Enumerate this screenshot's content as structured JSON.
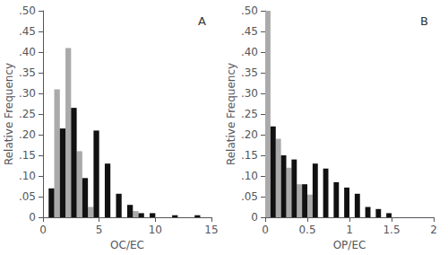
{
  "chart_data": [
    {
      "type": "histogram",
      "annotations": [
        "A"
      ],
      "xlabel": "OC/EC",
      "ylabel": "Relative Frequency",
      "xlim": [
        0,
        15
      ],
      "ylim": [
        0,
        0.5
      ],
      "xticks": [
        0,
        5,
        10,
        15
      ],
      "yticks": [
        0,
        {
          "value": 0.05,
          "label": ".05"
        },
        {
          "value": 0.1,
          "label": ".10"
        },
        {
          "value": 0.15,
          "label": ".15"
        },
        {
          "value": 0.2,
          "label": ".20"
        },
        {
          "value": 0.25,
          "label": ".25"
        },
        {
          "value": 0.3,
          "label": ".30"
        },
        {
          "value": 0.35,
          "label": ".35"
        },
        {
          "value": 0.4,
          "label": ".40"
        },
        {
          "value": 0.45,
          "label": ".45"
        },
        {
          "value": 0.5,
          "label": ".50"
        }
      ],
      "bins": [
        0,
        1,
        2,
        3,
        4,
        5,
        6,
        7,
        8,
        9,
        10,
        11,
        12,
        13,
        14,
        15
      ],
      "series": [
        {
          "color": "#aaaaaa",
          "values": [
            0.0,
            0.31,
            0.41,
            0.16,
            0.025,
            0.0,
            0.0,
            0.0,
            0.015,
            0.0,
            0.0,
            0.0,
            0.0,
            0.0,
            0.0
          ]
        },
        {
          "color": "#111111",
          "values": [
            0.07,
            0.215,
            0.265,
            0.095,
            0.21,
            0.13,
            0.057,
            0.03,
            0.01,
            0.01,
            0.0,
            0.005,
            0.0,
            0.005,
            0.0
          ]
        }
      ],
      "grid": false
    },
    {
      "type": "histogram",
      "annotations": [
        "B"
      ],
      "xlabel": "OP/EC",
      "ylabel": "Relative Frequency",
      "xlim": [
        0,
        2
      ],
      "ylim": [
        0,
        0.5
      ],
      "xticks": [
        0,
        0.5,
        1,
        1.5,
        2
      ],
      "yticks": [
        0,
        {
          "value": 0.05,
          "label": ".05"
        },
        {
          "value": 0.1,
          "label": ".10"
        },
        {
          "value": 0.15,
          "label": ".15"
        },
        {
          "value": 0.2,
          "label": ".20"
        },
        {
          "value": 0.25,
          "label": ".25"
        },
        {
          "value": 0.3,
          "label": ".30"
        },
        {
          "value": 0.35,
          "label": ".35"
        },
        {
          "value": 0.4,
          "label": ".40"
        },
        {
          "value": 0.45,
          "label": ".45"
        },
        {
          "value": 0.5,
          "label": ".50"
        }
      ],
      "bins": [
        0,
        0.125,
        0.25,
        0.375,
        0.5,
        0.625,
        0.75,
        0.875,
        1,
        1.125,
        1.25,
        1.375,
        1.5,
        1.625,
        1.75,
        1.875,
        2
      ],
      "series": [
        {
          "color": "#aaaaaa",
          "values": [
            0.5,
            0.19,
            0.12,
            0.08,
            0.055,
            0.0,
            0.0,
            0.0,
            0.0,
            0.0,
            0.0,
            0.0,
            0.0,
            0.0,
            0.0,
            0.0
          ]
        },
        {
          "color": "#111111",
          "values": [
            0.22,
            0.15,
            0.14,
            0.08,
            0.13,
            0.118,
            0.085,
            0.072,
            0.057,
            0.025,
            0.02,
            0.01,
            0.0,
            0.0,
            0.0,
            0.0
          ]
        }
      ],
      "grid": false
    }
  ]
}
